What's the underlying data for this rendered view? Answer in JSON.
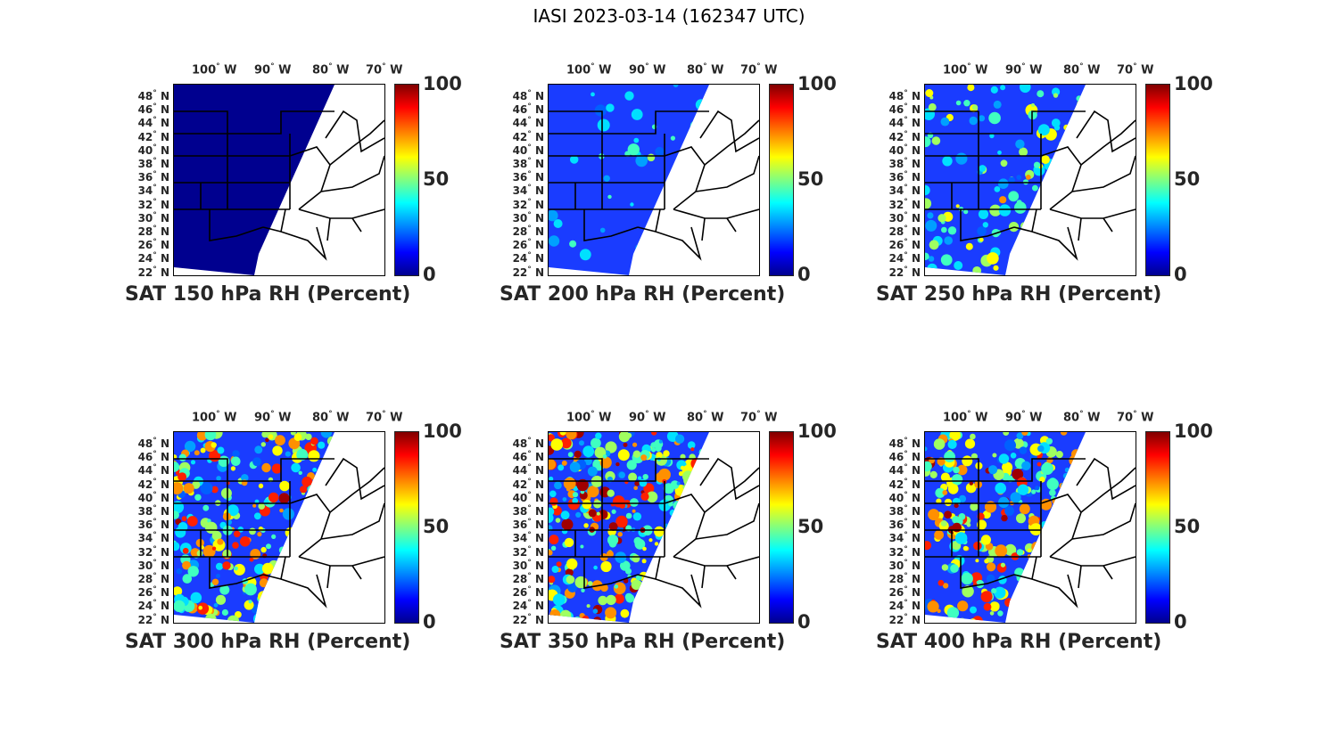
{
  "title": "IASI 2023-03-14 (162347 UTC)",
  "lon_ticks": [
    "100",
    "90",
    "80",
    "70"
  ],
  "lon_suffix": "W",
  "lat_ticks": [
    "48",
    "46",
    "44",
    "42",
    "40",
    "38",
    "36",
    "34",
    "32",
    "30",
    "28",
    "26",
    "24",
    "22"
  ],
  "lat_suffix": "N",
  "degree_symbol": "°",
  "colorbar": {
    "max": "100",
    "mid": "50",
    "min": "0",
    "colormap": "jet"
  },
  "panels": [
    {
      "label": "SAT 150 hPa RH (Percent)",
      "pressure_hPa": 150
    },
    {
      "label": "SAT 200 hPa RH (Percent)",
      "pressure_hPa": 200
    },
    {
      "label": "SAT 250 hPa RH (Percent)",
      "pressure_hPa": 250
    },
    {
      "label": "SAT 300 hPa RH (Percent)",
      "pressure_hPa": 300
    },
    {
      "label": "SAT 350 hPa RH (Percent)",
      "pressure_hPa": 350
    },
    {
      "label": "SAT 400 hPa RH (Percent)",
      "pressure_hPa": 400
    }
  ],
  "colors": {
    "swath_dry": "#00008f",
    "moist": "#ff0000",
    "border": "#000000"
  }
}
